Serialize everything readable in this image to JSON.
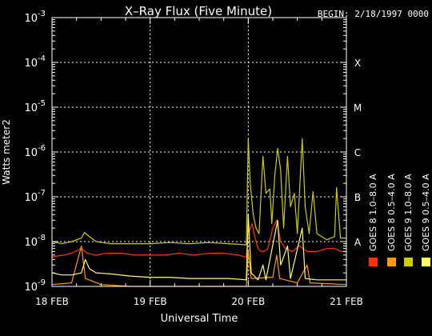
{
  "chart_data": {
    "type": "line",
    "title": "X–Ray Flux (Five Minute)",
    "begin_label": "BEGIN: 2/18/1997 0000",
    "xlabel": "Universal Time",
    "ylabel": "Watts meter2",
    "y_scale": "log",
    "ylim": [
      1e-09,
      0.001
    ],
    "y_ticks": [
      {
        "value": 1e-09,
        "exp": "-9"
      },
      {
        "value": 1e-08,
        "exp": "-8"
      },
      {
        "value": 1e-07,
        "exp": "-7"
      },
      {
        "value": 1e-06,
        "exp": "-6"
      },
      {
        "value": 1e-05,
        "exp": "-5"
      },
      {
        "value": 0.0001,
        "exp": "-4"
      },
      {
        "value": 0.001,
        "exp": "-3"
      }
    ],
    "xlim": [
      "1997-02-18 00:00",
      "1997-02-21 00:00"
    ],
    "x_ticks": [
      {
        "value": 0,
        "label": "18 FEB"
      },
      {
        "value": 1,
        "label": "19 FEB"
      },
      {
        "value": 2,
        "label": "20 FEB"
      },
      {
        "value": 3,
        "label": "21 FEB"
      }
    ],
    "flare_classes": [
      {
        "label": "A",
        "value": 1e-08
      },
      {
        "label": "B",
        "value": 1e-07
      },
      {
        "label": "C",
        "value": 1e-06
      },
      {
        "label": "M",
        "value": 1e-05
      },
      {
        "label": "X",
        "value": 0.0001
      }
    ],
    "grid": "dotted, at day boundaries and at decades 1e-8 to 1e-4",
    "legend_placement": "right, vertical",
    "series": [
      {
        "name": "GOES 8 1.0–8.0 A",
        "color": "#ff3300",
        "points": [
          [
            0,
            4.5e-09
          ],
          [
            0.06,
            4.8e-09
          ],
          [
            0.12,
            5e-09
          ],
          [
            0.2,
            5.5e-09
          ],
          [
            0.3,
            7e-09
          ],
          [
            0.36,
            5.5e-09
          ],
          [
            0.45,
            5e-09
          ],
          [
            0.55,
            5.5e-09
          ],
          [
            0.7,
            5.5e-09
          ],
          [
            0.85,
            5e-09
          ],
          [
            1,
            5e-09
          ],
          [
            1.15,
            5e-09
          ],
          [
            1.3,
            5.5e-09
          ],
          [
            1.45,
            5e-09
          ],
          [
            1.6,
            5.5e-09
          ],
          [
            1.75,
            5.5e-09
          ],
          [
            1.9,
            5e-09
          ],
          [
            1.98,
            4.5e-09
          ],
          [
            2.0,
            1.5e-08
          ],
          [
            2.04,
            2.5e-08
          ],
          [
            2.07,
            1.2e-08
          ],
          [
            2.1,
            7e-09
          ],
          [
            2.13,
            6e-09
          ],
          [
            2.16,
            6e-09
          ],
          [
            2.2,
            7e-09
          ],
          [
            2.25,
            2e-08
          ],
          [
            2.29,
            3e-08
          ],
          [
            2.33,
            1e-08
          ],
          [
            2.38,
            7e-09
          ],
          [
            2.45,
            6e-09
          ],
          [
            2.52,
            8e-09
          ],
          [
            2.6,
            6e-09
          ],
          [
            2.7,
            6e-09
          ],
          [
            2.8,
            7e-09
          ],
          [
            2.88,
            7e-09
          ],
          [
            2.95,
            6e-09
          ],
          [
            3,
            6e-09
          ]
        ]
      },
      {
        "name": "GOES 8 0.5–4.0 A",
        "color": "#ff9900",
        "points": [
          [
            0,
            1.1e-09
          ],
          [
            0.2,
            1.2e-09
          ],
          [
            0.3,
            8e-09
          ],
          [
            0.34,
            1.5e-09
          ],
          [
            0.5,
            1.1e-09
          ],
          [
            0.8,
            1e-09
          ],
          [
            1,
            1e-09
          ],
          [
            1.5,
            1e-09
          ],
          [
            1.98,
            1e-09
          ],
          [
            2.0,
            6e-09
          ],
          [
            2.03,
            1.5e-09
          ],
          [
            2.25,
            1.6e-09
          ],
          [
            2.29,
            5e-09
          ],
          [
            2.32,
            1.5e-09
          ],
          [
            2.5,
            1.2e-09
          ],
          [
            2.6,
            3e-09
          ],
          [
            2.63,
            1.2e-09
          ],
          [
            3,
            1.1e-09
          ]
        ]
      },
      {
        "name": "GOES 9 1.0–8.0 A",
        "color": "#cccc00",
        "points": [
          [
            0,
            1e-08
          ],
          [
            0.1,
            9e-09
          ],
          [
            0.2,
            1e-08
          ],
          [
            0.3,
            1.2e-08
          ],
          [
            0.33,
            1.6e-08
          ],
          [
            0.38,
            1.3e-08
          ],
          [
            0.45,
            1e-08
          ],
          [
            0.6,
            9e-09
          ],
          [
            0.8,
            9e-09
          ],
          [
            1,
            9e-09
          ],
          [
            1.2,
            9.5e-09
          ],
          [
            1.4,
            9e-09
          ],
          [
            1.6,
            9.5e-09
          ],
          [
            1.8,
            9e-09
          ],
          [
            1.98,
            8.5e-09
          ],
          [
            2.0,
            2e-06
          ],
          [
            2.02,
            2e-07
          ],
          [
            2.05,
            4e-08
          ],
          [
            2.08,
            2e-08
          ],
          [
            2.11,
            1.5e-08
          ],
          [
            2.15,
            8e-07
          ],
          [
            2.18,
            1.2e-07
          ],
          [
            2.22,
            1.5e-07
          ],
          [
            2.24,
            2.5e-08
          ],
          [
            2.27,
            3e-07
          ],
          [
            2.3,
            1.2e-06
          ],
          [
            2.33,
            4e-07
          ],
          [
            2.36,
            2e-08
          ],
          [
            2.4,
            8e-07
          ],
          [
            2.43,
            6e-08
          ],
          [
            2.47,
            1.2e-07
          ],
          [
            2.5,
            1.5e-08
          ],
          [
            2.55,
            2e-06
          ],
          [
            2.58,
            6e-08
          ],
          [
            2.62,
            1.5e-08
          ],
          [
            2.66,
            1.3e-07
          ],
          [
            2.7,
            1.5e-08
          ],
          [
            2.8,
            1.1e-08
          ],
          [
            2.88,
            1.3e-08
          ],
          [
            2.9,
            1.6e-07
          ],
          [
            2.94,
            1.2e-08
          ],
          [
            3,
            1.2e-08
          ]
        ]
      },
      {
        "name": "GOES 9 0.5–4.0 A",
        "color": "#ffff66",
        "points": [
          [
            0,
            2e-09
          ],
          [
            0.1,
            1.8e-09
          ],
          [
            0.2,
            1.8e-09
          ],
          [
            0.3,
            2e-09
          ],
          [
            0.34,
            4e-09
          ],
          [
            0.38,
            2.5e-09
          ],
          [
            0.45,
            2e-09
          ],
          [
            0.6,
            1.9e-09
          ],
          [
            0.8,
            1.7e-09
          ],
          [
            1,
            1.6e-09
          ],
          [
            1.2,
            1.6e-09
          ],
          [
            1.4,
            1.5e-09
          ],
          [
            1.6,
            1.5e-09
          ],
          [
            1.8,
            1.5e-09
          ],
          [
            1.98,
            1.4e-09
          ],
          [
            2.0,
            4e-08
          ],
          [
            2.03,
            2e-09
          ],
          [
            2.1,
            1.4e-09
          ],
          [
            2.15,
            3e-09
          ],
          [
            2.18,
            1.4e-09
          ],
          [
            2.3,
            3e-08
          ],
          [
            2.33,
            3e-09
          ],
          [
            2.4,
            8e-09
          ],
          [
            2.43,
            1.5e-09
          ],
          [
            2.55,
            2e-08
          ],
          [
            2.58,
            1.5e-09
          ],
          [
            2.7,
            1.4e-09
          ],
          [
            2.9,
            1.4e-09
          ],
          [
            3,
            1.4e-09
          ]
        ]
      }
    ]
  }
}
